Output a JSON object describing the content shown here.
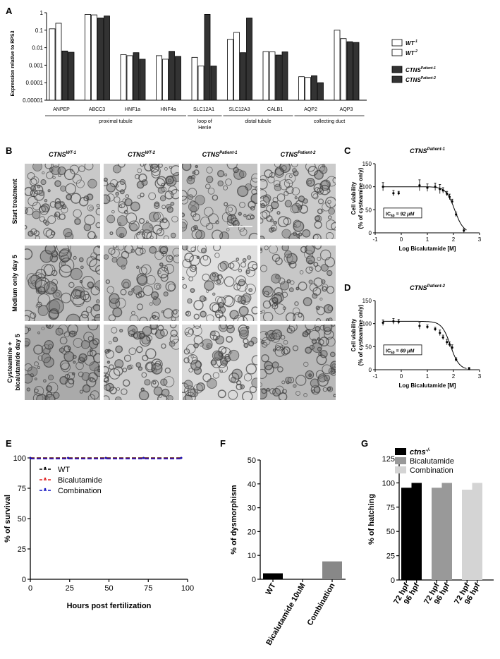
{
  "panels": {
    "A": "A",
    "B": "B",
    "C": "C",
    "D": "D",
    "E": "E",
    "F": "F",
    "G": "G"
  },
  "chart_data": [
    {
      "id": "A",
      "type": "bar",
      "log_scale": true,
      "ylabel": "Expression relative to RPS3",
      "ylim": [
        1e-05,
        1
      ],
      "yticks": [
        "1",
        "0.1",
        "0.01",
        "0.001",
        "0.0001",
        "0.00001"
      ],
      "categories": [
        "ANPEP",
        "ABCC3",
        "HNF1a",
        "HNF4a",
        "SLC12A1",
        "SLC12A3",
        "CALB1",
        "AQP2",
        "AQP3"
      ],
      "groups": [
        {
          "label": "proximal tubule",
          "span": [
            0,
            3
          ]
        },
        {
          "label": "loop of Henle",
          "span": [
            4,
            4
          ]
        },
        {
          "label": "distal tubule",
          "span": [
            5,
            6
          ]
        },
        {
          "label": "collecting duct",
          "span": [
            7,
            8
          ]
        }
      ],
      "series": [
        {
          "name": "WT-1",
          "base": "WT",
          "sup": "-1",
          "color": "#ffffff",
          "values": [
            0.12,
            0.8,
            0.004,
            0.0035,
            0.0028,
            0.03,
            0.006,
            0.00022,
            0.1
          ]
        },
        {
          "name": "WT-2",
          "base": "WT",
          "sup": "-2",
          "color": "#ffffff",
          "values": [
            0.25,
            0.75,
            0.0035,
            0.0022,
            0.0009,
            0.075,
            0.0058,
            0.0002,
            0.033
          ]
        },
        {
          "name": "CTNS Patient-1",
          "base": "CTNS",
          "sup": "Patient-1",
          "color": "#333333",
          "values": [
            0.0065,
            0.5,
            0.0052,
            0.0062,
            0.8,
            0.0052,
            0.0038,
            0.00025,
            0.022
          ]
        },
        {
          "name": "CTNS Patient-2",
          "base": "CTNS",
          "sup": "Patient-2",
          "color": "#333333",
          "values": [
            0.0055,
            0.65,
            0.0022,
            0.0032,
            0.0009,
            0.5,
            0.0058,
            0.0001,
            0.02
          ]
        }
      ]
    },
    {
      "id": "C",
      "type": "scatter",
      "title_base": "CTNS",
      "title_sup": "Patient-1",
      "xlabel": "Log Bicalutamide [M]",
      "ylabel_1": "Cell viability",
      "ylabel_2": "(% of cysteamine only)",
      "xlim": [
        -1,
        3
      ],
      "ylim": [
        0,
        150
      ],
      "xticks": [
        "-1",
        "0",
        "1",
        "2",
        "3"
      ],
      "yticks": [
        "0",
        "50",
        "100",
        "150"
      ],
      "ic50_text": "IC50 = 92 μM",
      "ic50_prefix": "IC",
      "ic50_sub": "50",
      "ic50_value": "= 92 μM",
      "x": [
        -0.7,
        -0.3,
        -0.1,
        0.7,
        1.0,
        1.3,
        1.48,
        1.6,
        1.75,
        1.85,
        1.95,
        2.1,
        2.4
      ],
      "y": [
        100,
        86,
        86,
        103,
        98,
        100,
        95,
        92,
        85,
        78,
        68,
        40,
        5
      ],
      "yerr": [
        9,
        6,
        4,
        12,
        8,
        8,
        10,
        6,
        5,
        6,
        5,
        5,
        4
      ]
    },
    {
      "id": "D",
      "type": "scatter",
      "title_base": "CTNS",
      "title_sup": "Patient-2",
      "xlabel": "Log Bicalutamide [M]",
      "ylabel_1": "Cell viability",
      "ylabel_2": "(% of cysteamine only)",
      "xlim": [
        -1,
        3
      ],
      "ylim": [
        0,
        150
      ],
      "xticks": [
        "-1",
        "0",
        "1",
        "2",
        "3"
      ],
      "yticks": [
        "0",
        "50",
        "100",
        "150"
      ],
      "ic50_prefix": "IC",
      "ic50_sub": "50",
      "ic50_value": "= 69 μM",
      "x": [
        -0.7,
        -0.3,
        -0.1,
        0.7,
        1.0,
        1.3,
        1.48,
        1.6,
        1.75,
        1.85,
        1.95,
        2.1,
        2.6
      ],
      "y": [
        102,
        105,
        104,
        95,
        93,
        88,
        80,
        70,
        60,
        55,
        48,
        22,
        2
      ],
      "yerr": [
        6,
        6,
        5,
        7,
        4,
        4,
        6,
        5,
        6,
        5,
        6,
        4,
        3
      ]
    },
    {
      "id": "E",
      "type": "line",
      "xlabel": "Hours post fertilization",
      "ylabel": "% of survival",
      "xlim": [
        0,
        100
      ],
      "ylim": [
        0,
        100
      ],
      "xticks": [
        "0",
        "25",
        "50",
        "75",
        "100"
      ],
      "yticks": [
        "0",
        "25",
        "50",
        "75",
        "100"
      ],
      "series": [
        {
          "name": "WT",
          "color": "#000000",
          "x": [
            0,
            24,
            48,
            72,
            96
          ],
          "y": [
            100,
            100,
            100,
            100,
            100
          ]
        },
        {
          "name": "Bicalutamide",
          "color": "#e02020",
          "x": [
            0,
            24,
            48,
            72,
            96
          ],
          "y": [
            100,
            100,
            100,
            100,
            100
          ]
        },
        {
          "name": "Combination",
          "color": "#1010c0",
          "x": [
            0,
            24,
            48,
            72,
            96
          ],
          "y": [
            100,
            100,
            100,
            100,
            100
          ]
        }
      ]
    },
    {
      "id": "F",
      "type": "bar",
      "ylabel": "% of dysmorphism",
      "ylim": [
        0,
        50
      ],
      "yticks": [
        "0",
        "10",
        "20",
        "30",
        "40",
        "50"
      ],
      "categories": [
        "WT",
        "Bicalutamide 10uM",
        "Combination"
      ],
      "values": [
        2.5,
        0,
        7.5
      ],
      "colors": [
        "#000000",
        "#777777",
        "#888888"
      ]
    },
    {
      "id": "G",
      "type": "bar",
      "ylabel": "% of hatching",
      "ylim": [
        0,
        125
      ],
      "yticks": [
        "0",
        "25",
        "50",
        "75",
        "100",
        "125"
      ],
      "categories": [
        "72 hpf",
        "96 hpf",
        "72 hpf",
        "96 hpf",
        "72 hpf",
        "96 hpf"
      ],
      "values": [
        95,
        100,
        95,
        100,
        93,
        100
      ],
      "series": [
        {
          "name": "ctns-/-",
          "base": "ctns",
          "sup": "-/-",
          "color": "#000000"
        },
        {
          "name": "Bicalutamide",
          "color": "#999999"
        },
        {
          "name": "Combination",
          "color": "#d4d4d4"
        }
      ]
    }
  ],
  "panelB": {
    "columns": [
      {
        "base": "CTNS",
        "sup": "WT-1"
      },
      {
        "base": "CTNS",
        "sup": "WT-2"
      },
      {
        "base": "CTNS",
        "sup": "Patient-1"
      },
      {
        "base": "CTNS",
        "sup": "Patient-2"
      }
    ],
    "rows": [
      {
        "line1": "Start treatment",
        "line2": ""
      },
      {
        "line1": "Medium only day 5",
        "line2": ""
      },
      {
        "line1": "Cysteamine +",
        "line2": "bicalutamide day 5"
      }
    ]
  }
}
